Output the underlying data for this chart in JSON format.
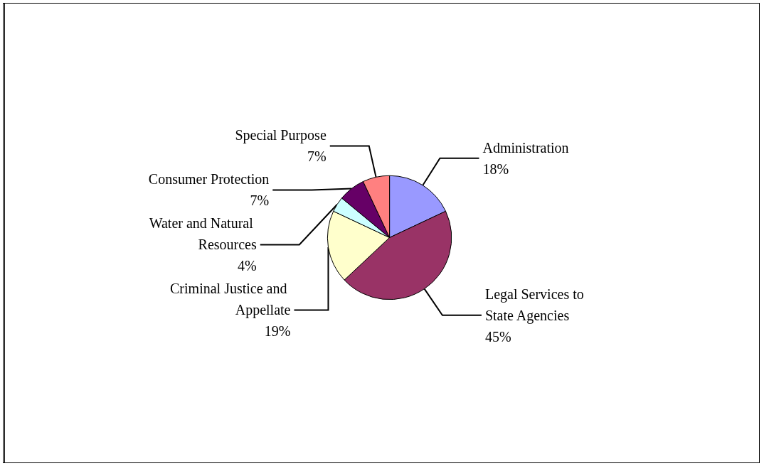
{
  "chart_data": {
    "type": "pie",
    "categories": [
      "Administration",
      "Legal Services to State Agencies",
      "Criminal Justice and Appellate",
      "Water and Natural Resources",
      "Consumer Protection",
      "Special Purpose"
    ],
    "values": [
      18,
      45,
      19,
      4,
      7,
      7
    ],
    "value_labels": [
      "18%",
      "45%",
      "19%",
      "4%",
      "7%",
      "7%"
    ],
    "colors": [
      "#9999ff",
      "#993366",
      "#ffffcc",
      "#ccffff",
      "#660066",
      "#ff8080"
    ],
    "legend": false
  }
}
